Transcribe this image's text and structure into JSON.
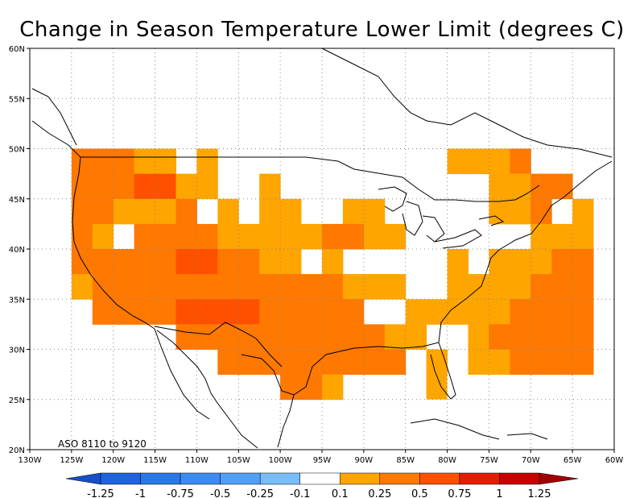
{
  "title": "Change in Season Temperature Lower Limit (degrees C)",
  "period_label": "ASO 8110 to 9120",
  "lon_ticks": [
    "130W",
    "125W",
    "120W",
    "115W",
    "110W",
    "105W",
    "100W",
    "95W",
    "90W",
    "85W",
    "80W",
    "75W",
    "70W",
    "65W",
    "60W"
  ],
  "lat_ticks": [
    "60N",
    "55N",
    "50N",
    "45N",
    "40N",
    "35N",
    "30N",
    "25N",
    "20N"
  ],
  "colorbar": {
    "labels": [
      "-1.25",
      "-1",
      "-0.75",
      "-0.5",
      "-0.25",
      "-0.1",
      "0.1",
      "0.25",
      "0.5",
      "0.75",
      "1",
      "1.25"
    ],
    "colors": [
      "#1e64dc",
      "#2878e6",
      "#3c8cf0",
      "#50a0f5",
      "#78bcfa",
      "#ffffff",
      "#ffa500",
      "#ff7800",
      "#ff5000",
      "#e61e00",
      "#c80000",
      "#a00000"
    ],
    "under_color": "#1450c8",
    "over_color": "#a00000"
  },
  "levels": {
    "lo": "#ffa500",
    "mid": "#ff7800",
    "hi": "#ff5000",
    "vhi": "#e61e00"
  }
}
